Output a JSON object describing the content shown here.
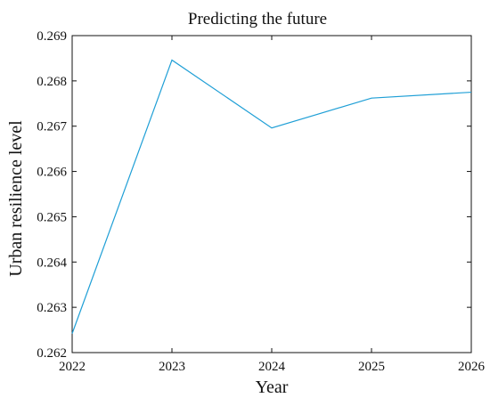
{
  "chart_data": {
    "type": "line",
    "title": "Predicting the future",
    "xlabel": "Year",
    "ylabel": "Urban resilience level",
    "x": [
      2022,
      2023,
      2024,
      2025,
      2026
    ],
    "series": [
      {
        "values": [
          0.26242,
          0.26846,
          0.26696,
          0.26762,
          0.26775
        ],
        "color": "#1f9fd6"
      }
    ],
    "xlim": [
      2022,
      2026
    ],
    "ylim": [
      0.262,
      0.269
    ],
    "xticks": [
      2022,
      2023,
      2024,
      2025,
      2026
    ],
    "yticks": [
      0.262,
      0.263,
      0.264,
      0.265,
      0.266,
      0.267,
      0.268,
      0.269
    ],
    "ytick_labels": [
      "0.262",
      "0.263",
      "0.264",
      "0.265",
      "0.266",
      "0.267",
      "0.268",
      "0.269"
    ],
    "grid": false,
    "legend": "none",
    "axis_color": "#111111"
  }
}
